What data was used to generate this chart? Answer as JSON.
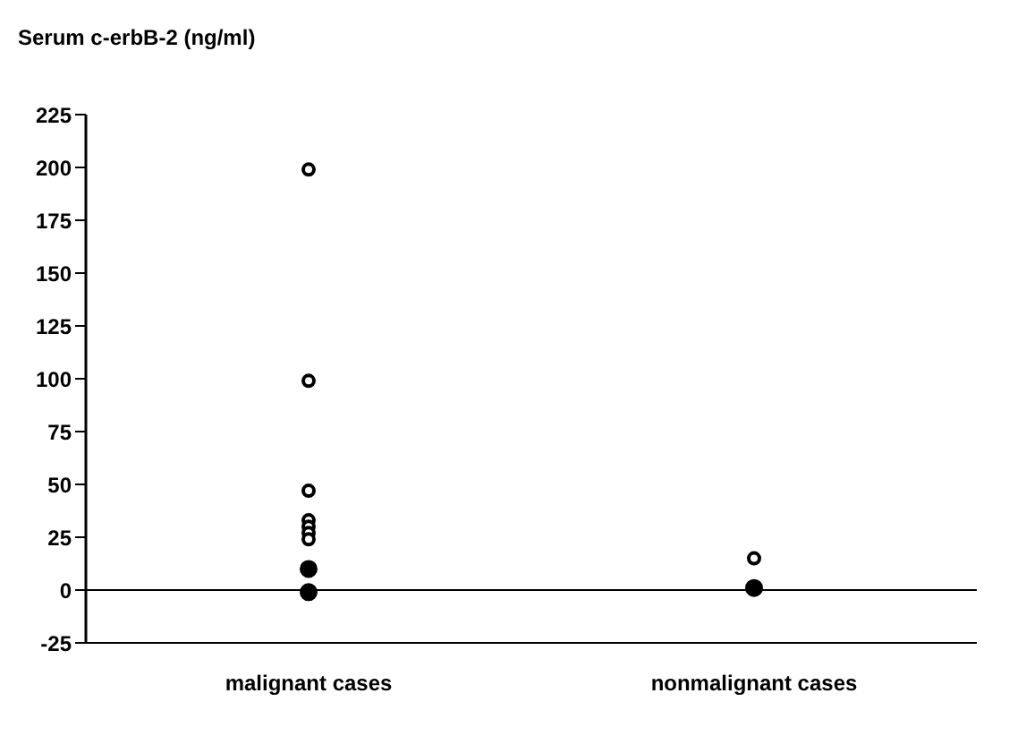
{
  "chart_data": {
    "type": "scatter",
    "title": "Serum c-erbB-2 (ng/ml)",
    "categories": [
      "malignant cases",
      "nonmalignant cases"
    ],
    "series": [
      {
        "color": "#000000",
        "x": [
          "malignant cases",
          "malignant cases",
          "malignant cases",
          "malignant cases",
          "malignant cases",
          "malignant cases",
          "malignant cases",
          "nonmalignant cases"
        ],
        "values": [
          199,
          99,
          47,
          33,
          30,
          27,
          24,
          15
        ]
      },
      {
        "color": "#000000",
        "x": [
          "malignant cases",
          "malignant cases",
          "nonmalignant cases"
        ],
        "values": [
          10,
          -1,
          1
        ]
      }
    ],
    "ref_lines": [
      {
        "axis": "y",
        "value": 0
      }
    ],
    "ylim": [
      -25,
      225
    ],
    "yticks": [
      -25,
      0,
      25,
      50,
      75,
      100,
      125,
      150,
      175,
      200,
      225
    ],
    "marker": "circle"
  }
}
